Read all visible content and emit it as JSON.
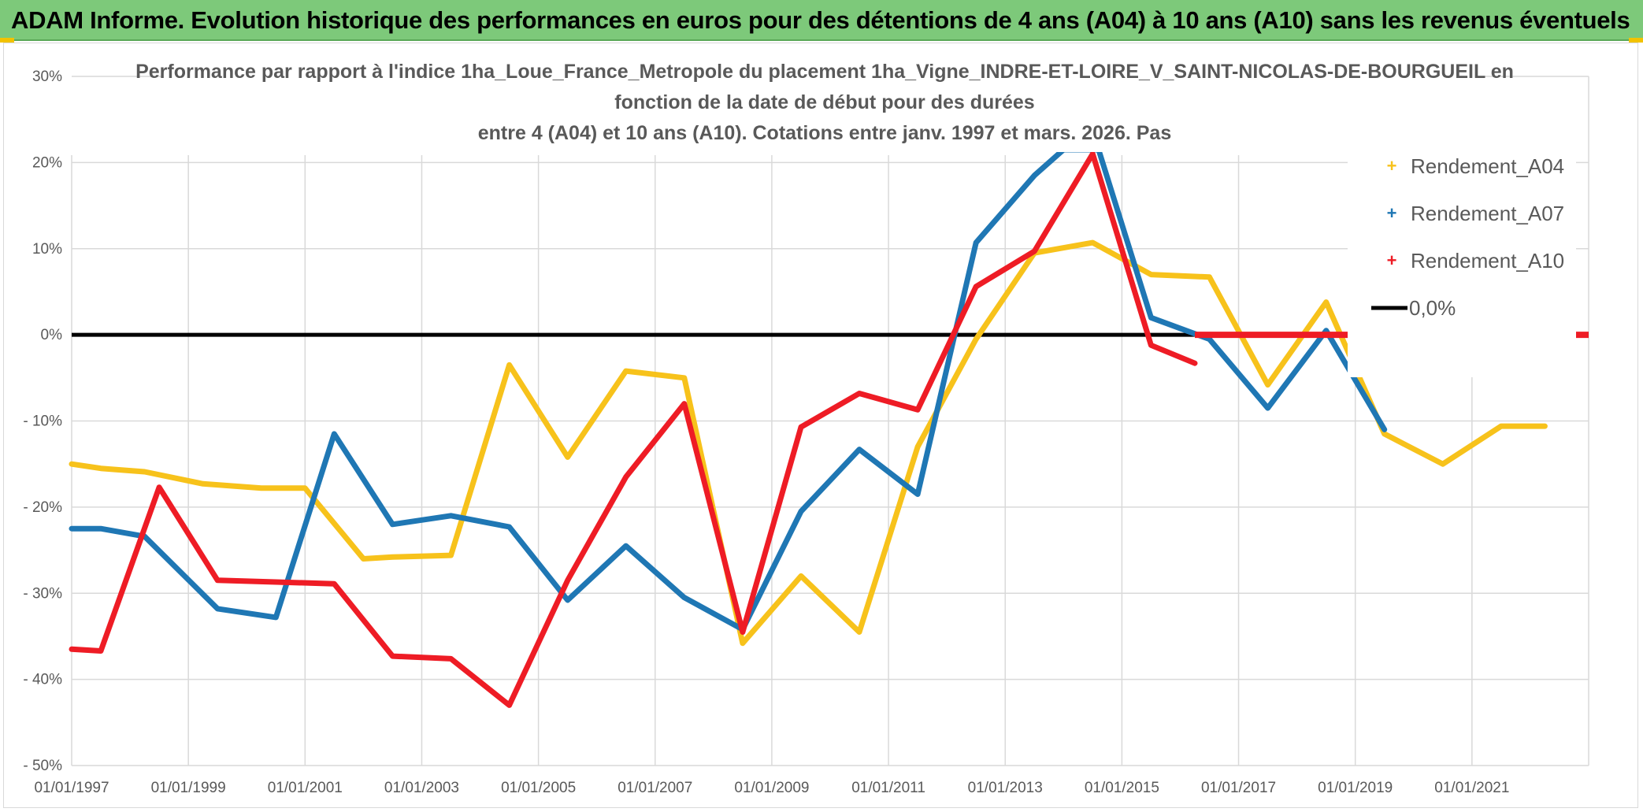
{
  "banner": {
    "title": "ADAM Informe. Evolution historique des performances en euros pour des détentions de 4 ans (A04) à 10 ans (A10) sans les revenus éventuels"
  },
  "colors": {
    "banner_bg": "#7dc97a",
    "A04": "#f7c21b",
    "A07": "#1f77b4",
    "A10": "#ee1c25",
    "zero": "#000000"
  },
  "chart_data": {
    "type": "line",
    "title": [
      "Performance  par rapport à l'indice 1ha_Loue_France_Metropole  du placement 1ha_Vigne_INDRE-ET-LOIRE_V_SAINT-NICOLAS-DE-BOURGUEIL en",
      "fonction de la date de début pour des durées",
      "entre 4 (A04) et 10 ans (A10). Cotations entre janv. 1997 et mars. 2026. Pas"
    ],
    "xlabel": "",
    "ylabel": "",
    "x_axis": {
      "type": "date",
      "start_year": 1997.0,
      "end_year": 2023.0
    },
    "x_ticks": [
      "01/01/1997",
      "01/01/1999",
      "01/01/2001",
      "01/01/2003",
      "01/01/2005",
      "01/01/2007",
      "01/01/2009",
      "01/01/2011",
      "01/01/2013",
      "01/01/2015",
      "01/01/2017",
      "01/01/2019",
      "01/01/2021"
    ],
    "x_tick_years": [
      1997,
      1999,
      2001,
      2003,
      2005,
      2007,
      2009,
      2011,
      2013,
      2015,
      2017,
      2019,
      2021
    ],
    "ylim": [
      -50,
      30
    ],
    "y_ticks": [
      30,
      20,
      10,
      0,
      -10,
      -20,
      -30,
      -40,
      -50
    ],
    "y_tick_labels": [
      "30%",
      "20%",
      "10%",
      "0%",
      "- 10%",
      "- 20%",
      "- 30%",
      "- 40%",
      "- 50%"
    ],
    "grid": true,
    "legend_position": "top-right",
    "series": [
      {
        "name": "Rendement_A04",
        "color_key": "A04",
        "points": [
          [
            1997.0,
            -15.0
          ],
          [
            1997.5,
            -15.5
          ],
          [
            1998.25,
            -15.9
          ],
          [
            1999.25,
            -17.3
          ],
          [
            2000.25,
            -17.8
          ],
          [
            2001.0,
            -17.8
          ],
          [
            2002.0,
            -26.0
          ],
          [
            2002.5,
            -25.8
          ],
          [
            2003.5,
            -25.6
          ],
          [
            2004.5,
            -3.5
          ],
          [
            2005.5,
            -14.2
          ],
          [
            2006.5,
            -4.2
          ],
          [
            2007.5,
            -5.0
          ],
          [
            2008.5,
            -35.8
          ],
          [
            2009.5,
            -28.0
          ],
          [
            2010.5,
            -34.5
          ],
          [
            2011.5,
            -13.0
          ],
          [
            2012.5,
            -0.5
          ],
          [
            2013.5,
            9.5
          ],
          [
            2014.5,
            10.7
          ],
          [
            2015.5,
            7.0
          ],
          [
            2016.5,
            6.7
          ],
          [
            2017.5,
            -5.8
          ],
          [
            2018.5,
            3.8
          ],
          [
            2019.5,
            -11.5
          ],
          [
            2020.5,
            -15.0
          ],
          [
            2021.5,
            -10.6
          ],
          [
            2022.25,
            -10.6
          ]
        ]
      },
      {
        "name": "Rendement_A07",
        "color_key": "A07",
        "points": [
          [
            1997.0,
            -22.5
          ],
          [
            1997.5,
            -22.5
          ],
          [
            1998.25,
            -23.4
          ],
          [
            1999.5,
            -31.8
          ],
          [
            2000.5,
            -32.8
          ],
          [
            2001.5,
            -11.5
          ],
          [
            2002.5,
            -22.0
          ],
          [
            2003.5,
            -21.0
          ],
          [
            2004.5,
            -22.3
          ],
          [
            2005.5,
            -30.8
          ],
          [
            2006.5,
            -24.5
          ],
          [
            2007.5,
            -30.5
          ],
          [
            2008.5,
            -34.2
          ],
          [
            2009.5,
            -20.5
          ],
          [
            2010.5,
            -13.3
          ],
          [
            2011.5,
            -18.5
          ],
          [
            2012.5,
            10.7
          ],
          [
            2013.5,
            18.5
          ],
          [
            2014.0,
            21.5
          ],
          [
            2014.6,
            21.5
          ],
          [
            2015.5,
            2.0
          ],
          [
            2016.5,
            -0.5
          ],
          [
            2017.5,
            -8.5
          ],
          [
            2018.5,
            0.5
          ],
          [
            2019.5,
            -11.0
          ]
        ]
      },
      {
        "name": "Rendement_A10",
        "color_key": "A10",
        "points": [
          [
            1997.0,
            -36.5
          ],
          [
            1997.5,
            -36.7
          ],
          [
            1998.5,
            -17.7
          ],
          [
            1999.5,
            -28.5
          ],
          [
            2000.5,
            -28.7
          ],
          [
            2001.5,
            -28.9
          ],
          [
            2002.5,
            -37.3
          ],
          [
            2003.5,
            -37.6
          ],
          [
            2004.5,
            -43.0
          ],
          [
            2005.5,
            -28.5
          ],
          [
            2006.5,
            -16.5
          ],
          [
            2007.5,
            -8.0
          ],
          [
            2008.5,
            -34.5
          ],
          [
            2009.5,
            -10.7
          ],
          [
            2010.5,
            -6.8
          ],
          [
            2011.5,
            -8.7
          ],
          [
            2012.5,
            5.6
          ],
          [
            2013.5,
            9.7
          ],
          [
            2014.5,
            21.0
          ],
          [
            2015.5,
            -1.2
          ],
          [
            2016.25,
            -3.3
          ]
        ]
      }
    ],
    "zero_line": {
      "name": "0,0%",
      "color_key": "zero",
      "points": [
        [
          1997.0,
          0.0
        ],
        [
          2023.0,
          0.0
        ]
      ]
    },
    "flat_zero_segment": {
      "color_key": "A10",
      "points": [
        [
          2016.25,
          0.0
        ],
        [
          2023.0,
          0.0
        ]
      ]
    }
  }
}
